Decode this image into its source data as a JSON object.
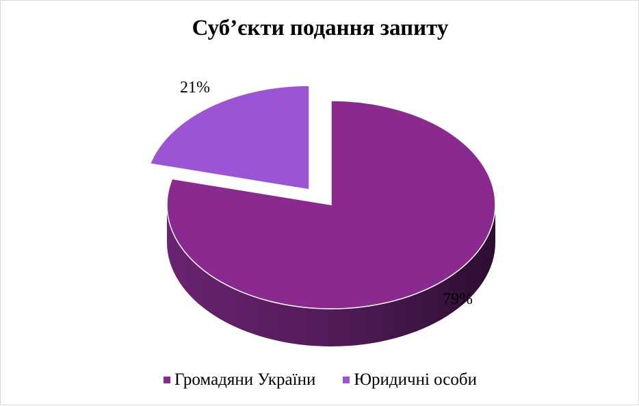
{
  "chart_data": {
    "type": "pie",
    "title": "Суб’єкти подання запиту",
    "categories": [
      "Громадяни України",
      "Юридичні особи"
    ],
    "values": [
      79,
      21
    ],
    "data_labels": [
      "79%",
      "21%"
    ],
    "colors": [
      "#8b2a8e",
      "#9b55d4"
    ],
    "side_colors": [
      "#4a1750",
      "#3f2456"
    ],
    "legend_position": "bottom",
    "style": "3d-exploded"
  }
}
